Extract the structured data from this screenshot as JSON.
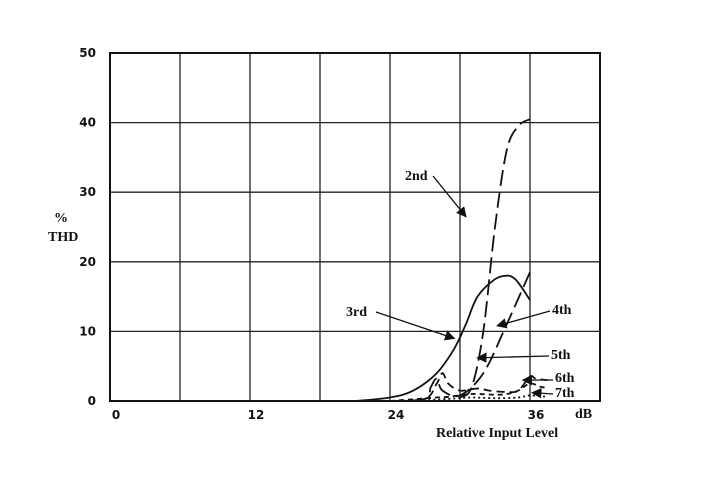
{
  "chart_data": {
    "type": "line",
    "xlabel": "Relative Input Level",
    "x_unit": "dB",
    "ylabel_lines": [
      "%",
      "THD"
    ],
    "xlim": [
      0,
      42
    ],
    "ylim": [
      0,
      50
    ],
    "x_ticks": [
      0,
      12,
      24,
      36
    ],
    "y_ticks": [
      0,
      10,
      20,
      30,
      40,
      50
    ],
    "grid": true,
    "series": [
      {
        "name": "2nd",
        "style": "long-dash",
        "x": [
          30,
          31,
          32,
          33,
          34,
          35,
          36
        ],
        "y": [
          0.5,
          2,
          10,
          25,
          36,
          39.5,
          40.5
        ]
      },
      {
        "name": "3rd",
        "style": "solid",
        "x": [
          21,
          24,
          26,
          28,
          29.5,
          30.5,
          31.5,
          33,
          34,
          34.5,
          35,
          36
        ],
        "y": [
          0,
          0.5,
          1.5,
          4,
          7.5,
          11,
          15,
          17.5,
          18,
          17.8,
          17,
          14.5
        ]
      },
      {
        "name": "4th",
        "style": "long-dash",
        "x": [
          24,
          27,
          27.5,
          28,
          28.5,
          30,
          32,
          34,
          36
        ],
        "y": [
          0,
          0.3,
          2,
          3.2,
          1.5,
          0.8,
          4,
          11,
          18.5
        ]
      },
      {
        "name": "5th",
        "style": "dash",
        "x": [
          24,
          27,
          28,
          28.5,
          29,
          30,
          31.5,
          32.5,
          34,
          35,
          36,
          36.5,
          37.5
        ],
        "y": [
          0,
          0.3,
          2.5,
          4,
          2.5,
          1.5,
          1.8,
          1.5,
          1.3,
          1.5,
          3.5,
          3.2,
          3
        ]
      },
      {
        "name": "6th",
        "style": "short-dash",
        "x": [
          24,
          28,
          29,
          31,
          33,
          34,
          35,
          36,
          37,
          37.5
        ],
        "y": [
          0,
          0.5,
          0.6,
          1,
          0.9,
          1,
          1.5,
          2.5,
          2,
          2
        ]
      },
      {
        "name": "7th",
        "style": "dot",
        "x": [
          26,
          29,
          31,
          33,
          35,
          36,
          37.5
        ],
        "y": [
          0,
          0.3,
          0.5,
          0.4,
          0.5,
          0.8,
          0.6
        ]
      }
    ],
    "annotations": [
      {
        "text": "2nd",
        "target": "2nd"
      },
      {
        "text": "3rd",
        "target": "3rd"
      },
      {
        "text": "4th",
        "target": "4th"
      },
      {
        "text": "5th",
        "target": "5th"
      },
      {
        "text": "6th",
        "target": "6th"
      },
      {
        "text": "7th",
        "target": "7th"
      }
    ]
  }
}
